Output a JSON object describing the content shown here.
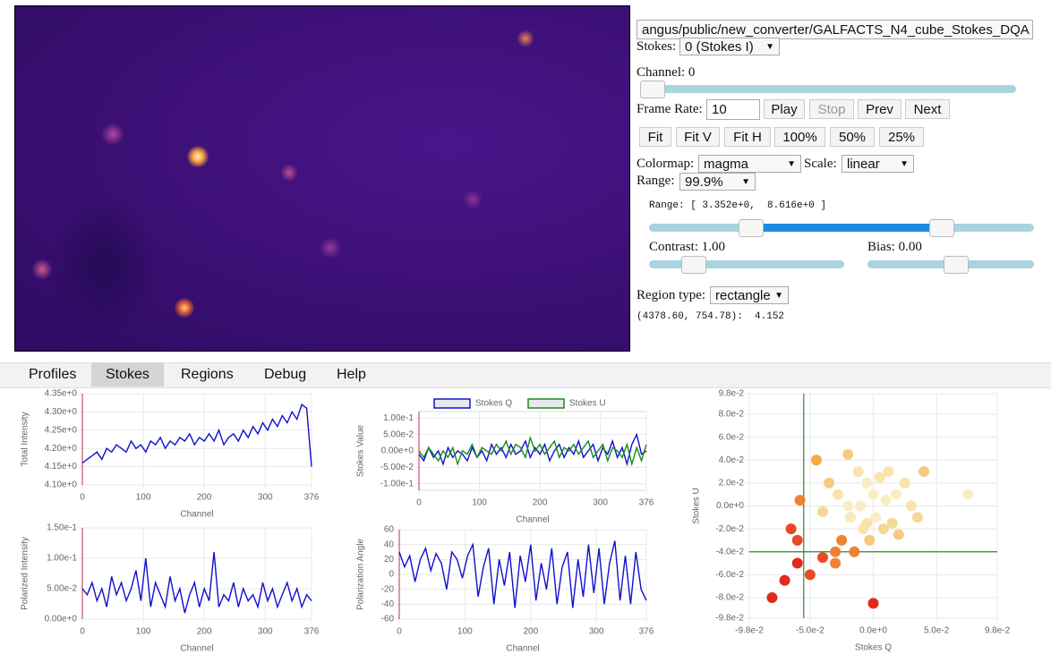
{
  "file_path": "angus/public/new_converter/GALFACTS_N4_cube_Stokes_DQA",
  "controls": {
    "stokes_label": "Stokes:",
    "stokes_value": "0 (Stokes I)",
    "channel_label": "Channel: 0",
    "frame_rate_label": "Frame Rate:",
    "frame_rate_value": "10",
    "buttons": [
      "Play",
      "Stop",
      "Prev",
      "Next"
    ],
    "fit_buttons": [
      "Fit",
      "Fit V",
      "Fit H",
      "100%",
      "50%",
      "25%"
    ],
    "colormap_label": "Colormap:",
    "colormap_value": "magma",
    "scale_label": "Scale:",
    "scale_value": "linear",
    "range_label": "Range:",
    "range_value": "99.9%",
    "range_readout": "Range: [ 3.352e+0,  8.616e+0 ]",
    "contrast_label": "Contrast: 1.00",
    "bias_label": "Bias: 0.00",
    "region_label": "Region type:",
    "region_value": "rectangle",
    "cursor_readout": "(4378.60, 754.78):  4.152"
  },
  "tabs": [
    "Profiles",
    "Stokes",
    "Regions",
    "Debug",
    "Help"
  ],
  "chart_data": [
    {
      "type": "line",
      "xlabel": "Channel",
      "ylabel": "Total Intensity",
      "xlim": [
        0,
        376
      ],
      "xticks": [
        0,
        100,
        200,
        300,
        376
      ],
      "ylim": [
        4.1,
        4.35
      ],
      "yticks": [
        {
          "value": 4.1,
          "label": "4.10e+0"
        },
        {
          "value": 4.15,
          "label": "4.15e+0"
        },
        {
          "value": 4.2,
          "label": "4.20e+0"
        },
        {
          "value": 4.25,
          "label": "4.25e+0"
        },
        {
          "value": 4.3,
          "label": "4.30e+0"
        },
        {
          "value": 4.35,
          "label": "4.35e+0"
        }
      ],
      "x": [
        0,
        8,
        16,
        24,
        32,
        40,
        48,
        56,
        64,
        72,
        80,
        88,
        96,
        104,
        112,
        120,
        128,
        136,
        144,
        152,
        160,
        168,
        176,
        184,
        192,
        200,
        208,
        216,
        224,
        232,
        240,
        248,
        256,
        264,
        272,
        280,
        288,
        296,
        304,
        312,
        320,
        328,
        336,
        344,
        352,
        360,
        368,
        376
      ],
      "series": [
        {
          "color": "#1010d0",
          "values": [
            4.16,
            4.17,
            4.18,
            4.19,
            4.17,
            4.2,
            4.19,
            4.21,
            4.2,
            4.19,
            4.22,
            4.2,
            4.21,
            4.19,
            4.22,
            4.21,
            4.23,
            4.2,
            4.22,
            4.21,
            4.23,
            4.22,
            4.24,
            4.21,
            4.23,
            4.22,
            4.24,
            4.22,
            4.25,
            4.21,
            4.23,
            4.24,
            4.22,
            4.25,
            4.23,
            4.26,
            4.24,
            4.27,
            4.25,
            4.28,
            4.26,
            4.29,
            4.27,
            4.3,
            4.28,
            4.32,
            4.31,
            4.15
          ]
        }
      ]
    },
    {
      "type": "line",
      "xlabel": "Channel",
      "ylabel": "Stokes Value",
      "xlim": [
        0,
        376
      ],
      "xticks": [
        0,
        100,
        200,
        300,
        376
      ],
      "ylim": [
        -0.12,
        0.12
      ],
      "yticks": [
        {
          "value": -0.1,
          "label": "-1.00e-1"
        },
        {
          "value": -0.05,
          "label": "-5.00e-2"
        },
        {
          "value": 0,
          "label": "0.00e+0"
        },
        {
          "value": 0.05,
          "label": "5.00e-2"
        },
        {
          "value": 0.1,
          "label": "1.00e-1"
        }
      ],
      "x": [
        0,
        8,
        16,
        24,
        32,
        40,
        48,
        56,
        64,
        72,
        80,
        88,
        96,
        104,
        112,
        120,
        128,
        136,
        144,
        152,
        160,
        168,
        176,
        184,
        192,
        200,
        208,
        216,
        224,
        232,
        240,
        248,
        256,
        264,
        272,
        280,
        288,
        296,
        304,
        312,
        320,
        328,
        336,
        344,
        352,
        360,
        368,
        376
      ],
      "series": [
        {
          "name": "Stokes Q",
          "color": "#1010d0",
          "values": [
            -0.01,
            -0.03,
            0.01,
            -0.02,
            0.0,
            -0.04,
            0.01,
            -0.02,
            0.0,
            -0.01,
            -0.03,
            0.01,
            -0.02,
            0.0,
            -0.03,
            0.02,
            -0.01,
            0.01,
            -0.02,
            0.02,
            -0.01,
            0.0,
            0.03,
            -0.02,
            0.01,
            -0.01,
            0.02,
            -0.03,
            0.0,
            0.02,
            -0.02,
            0.01,
            -0.01,
            0.03,
            -0.02,
            0.0,
            0.02,
            -0.03,
            0.01,
            -0.01,
            0.03,
            -0.02,
            0.01,
            -0.04,
            0.02,
            0.05,
            -0.01,
            0.0
          ]
        },
        {
          "name": "Stokes U",
          "color": "#1a8a1a",
          "values": [
            0.0,
            -0.02,
            0.01,
            -0.01,
            -0.03,
            0.0,
            -0.02,
            0.01,
            -0.04,
            0.0,
            -0.01,
            0.02,
            -0.02,
            0.01,
            0.0,
            -0.01,
            0.02,
            0.0,
            0.03,
            -0.01,
            0.02,
            0.01,
            -0.02,
            0.04,
            0.0,
            0.02,
            -0.01,
            0.01,
            0.03,
            -0.02,
            0.01,
            0.0,
            0.02,
            -0.01,
            0.01,
            0.03,
            -0.02,
            0.0,
            0.02,
            -0.03,
            0.01,
            0.0,
            -0.02,
            0.02,
            -0.04,
            0.01,
            -0.03,
            0.02
          ]
        }
      ]
    },
    {
      "type": "line",
      "xlabel": "Channel",
      "ylabel": "Polarized Intensity",
      "xlim": [
        0,
        376
      ],
      "xticks": [
        0,
        100,
        200,
        300,
        376
      ],
      "ylim": [
        0,
        0.15
      ],
      "yticks": [
        {
          "value": 0,
          "label": "0.00e+0"
        },
        {
          "value": 0.05,
          "label": "5.00e-2"
        },
        {
          "value": 0.1,
          "label": "1.00e-1"
        },
        {
          "value": 0.15,
          "label": "1.50e-1"
        }
      ],
      "x": [
        0,
        8,
        16,
        24,
        32,
        40,
        48,
        56,
        64,
        72,
        80,
        88,
        96,
        104,
        112,
        120,
        128,
        136,
        144,
        152,
        160,
        168,
        176,
        184,
        192,
        200,
        208,
        216,
        224,
        232,
        240,
        248,
        256,
        264,
        272,
        280,
        288,
        296,
        304,
        312,
        320,
        328,
        336,
        344,
        352,
        360,
        368,
        376
      ],
      "series": [
        {
          "color": "#1010d0",
          "values": [
            0.05,
            0.04,
            0.06,
            0.03,
            0.05,
            0.02,
            0.07,
            0.04,
            0.06,
            0.03,
            0.05,
            0.08,
            0.03,
            0.1,
            0.02,
            0.06,
            0.04,
            0.02,
            0.07,
            0.03,
            0.05,
            0.01,
            0.04,
            0.06,
            0.02,
            0.05,
            0.03,
            0.11,
            0.02,
            0.04,
            0.03,
            0.06,
            0.02,
            0.05,
            0.03,
            0.04,
            0.02,
            0.06,
            0.03,
            0.05,
            0.02,
            0.04,
            0.06,
            0.03,
            0.05,
            0.02,
            0.04,
            0.03
          ]
        }
      ]
    },
    {
      "type": "line",
      "xlabel": "Channel",
      "ylabel": "Polarization Angle",
      "xlim": [
        0,
        376
      ],
      "xticks": [
        0,
        100,
        200,
        300,
        376
      ],
      "ylim": [
        -60,
        60
      ],
      "yticks": [
        -60,
        -40,
        -20,
        0,
        20,
        40,
        60
      ],
      "x": [
        0,
        8,
        16,
        24,
        32,
        40,
        48,
        56,
        64,
        72,
        80,
        88,
        96,
        104,
        112,
        120,
        128,
        136,
        144,
        152,
        160,
        168,
        176,
        184,
        192,
        200,
        208,
        216,
        224,
        232,
        240,
        248,
        256,
        264,
        272,
        280,
        288,
        296,
        304,
        312,
        320,
        328,
        336,
        344,
        352,
        360,
        368,
        376
      ],
      "series": [
        {
          "color": "#1010d0",
          "values": [
            30,
            10,
            25,
            -10,
            20,
            35,
            5,
            28,
            15,
            -20,
            30,
            20,
            -5,
            25,
            40,
            -30,
            10,
            35,
            -40,
            20,
            -15,
            30,
            -45,
            25,
            -10,
            40,
            -35,
            15,
            -20,
            35,
            -40,
            10,
            30,
            -45,
            20,
            -30,
            40,
            -25,
            35,
            -40,
            15,
            45,
            -35,
            25,
            -40,
            30,
            -20,
            -35
          ]
        }
      ]
    },
    {
      "type": "scatter",
      "xlabel": "Stokes Q",
      "ylabel": "Stokes U",
      "xlim": [
        -0.098,
        0.098
      ],
      "xticks": [
        {
          "value": -0.098,
          "label": "-9.8e-2"
        },
        {
          "value": -0.05,
          "label": "-5.0e-2"
        },
        {
          "value": 0,
          "label": "0.0e+0"
        },
        {
          "value": 0.05,
          "label": "5.0e-2"
        },
        {
          "value": 0.098,
          "label": "9.8e-2"
        }
      ],
      "ylim": [
        -0.098,
        0.098
      ],
      "yticks": [
        {
          "value": -0.098,
          "label": "-9.8e-2"
        },
        {
          "value": -0.08,
          "label": "-8.0e-2"
        },
        {
          "value": -0.06,
          "label": "-6.0e-2"
        },
        {
          "value": -0.04,
          "label": "-4.0e-2"
        },
        {
          "value": -0.02,
          "label": "-2.0e-2"
        },
        {
          "value": 0,
          "label": "0.0e+0"
        },
        {
          "value": 0.02,
          "label": "2.0e-2"
        },
        {
          "value": 0.04,
          "label": "4.0e-2"
        },
        {
          "value": 0.06,
          "label": "6.0e-2"
        },
        {
          "value": 0.08,
          "label": "8.0e-2"
        },
        {
          "value": 0.098,
          "label": "9.8e-2"
        }
      ],
      "crosshair": {
        "x": -0.055,
        "y": -0.04,
        "color": "#2a8a2a"
      },
      "series": [
        {
          "x": [
            -0.08,
            -0.07,
            -0.065,
            -0.06,
            -0.058,
            -0.05,
            -0.045,
            -0.04,
            -0.035,
            -0.03,
            -0.028,
            -0.025,
            -0.02,
            -0.018,
            -0.015,
            -0.012,
            -0.01,
            -0.008,
            -0.005,
            -0.003,
            0.0,
            0.002,
            0.005,
            0.008,
            0.01,
            0.012,
            0.015,
            0.018,
            0.02,
            0.025,
            0.03,
            0.035,
            0.04,
            0.075,
            -0.04,
            -0.02,
            0.0,
            -0.06,
            -0.03,
            -0.005
          ],
          "values": [
            -0.08,
            -0.065,
            -0.02,
            -0.05,
            0.005,
            -0.06,
            0.04,
            -0.045,
            0.02,
            -0.05,
            0.01,
            -0.03,
            0.045,
            -0.01,
            -0.04,
            0.03,
            0.0,
            -0.02,
            0.02,
            -0.03,
            0.01,
            -0.01,
            0.025,
            -0.02,
            0.005,
            0.03,
            -0.015,
            0.01,
            -0.025,
            0.02,
            0.0,
            -0.01,
            0.03,
            0.01,
            -0.005,
            0.0,
            -0.085,
            -0.03,
            -0.04,
            -0.015
          ],
          "colors": [
            "#e0200f",
            "#e0200f",
            "#e8401a",
            "#e0200f",
            "#f07a2a",
            "#e8401a",
            "#f5a43a",
            "#e8401a",
            "#f5c878",
            "#f07a2a",
            "#f8e3a8",
            "#f07a2a",
            "#f5c878",
            "#f8e8b4",
            "#f07a2a",
            "#f8e3a8",
            "#f9edc0",
            "#f8e3a8",
            "#f9edc0",
            "#f5c878",
            "#f9edc0",
            "#f9edc0",
            "#f8e3a8",
            "#f5d690",
            "#f9edc0",
            "#f8e3a8",
            "#f5d690",
            "#f9edc0",
            "#f5c878",
            "#f8e3a8",
            "#f8e3a8",
            "#f5d690",
            "#f5c878",
            "#f9edc0",
            "#f5d690",
            "#f9edc0",
            "#e0200f",
            "#e8401a",
            "#f07a2a",
            "#f8e3a8"
          ]
        }
      ]
    }
  ]
}
